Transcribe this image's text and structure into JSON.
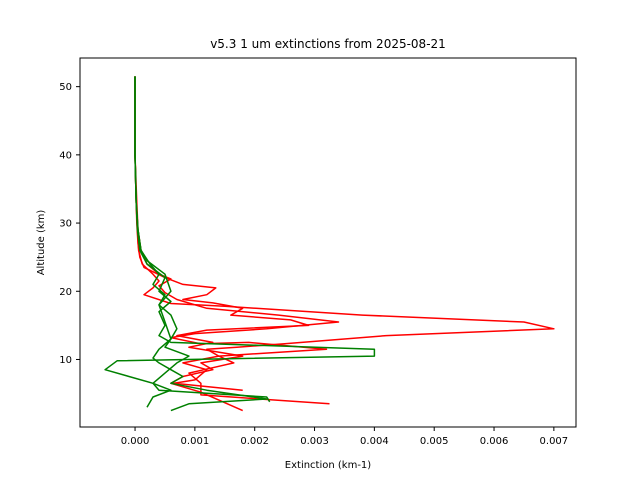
{
  "chart_data": {
    "type": "line",
    "title": "v5.3 1 um extinctions from 2025-08-21",
    "xlabel": "Extinction (km-1)",
    "ylabel": "Altitude (km)",
    "xlim": [
      -0.00092,
      0.00737
    ],
    "ylim": [
      0.1,
      54.2
    ],
    "xticks": [
      {
        "value": 0.0,
        "label": "0.000"
      },
      {
        "value": 0.001,
        "label": "0.001"
      },
      {
        "value": 0.002,
        "label": "0.002"
      },
      {
        "value": 0.003,
        "label": "0.003"
      },
      {
        "value": 0.004,
        "label": "0.004"
      },
      {
        "value": 0.005,
        "label": "0.005"
      },
      {
        "value": 0.006,
        "label": "0.006"
      },
      {
        "value": 0.007,
        "label": "0.007"
      }
    ],
    "yticks": [
      {
        "value": 10,
        "label": "10"
      },
      {
        "value": 20,
        "label": "20"
      },
      {
        "value": 30,
        "label": "30"
      },
      {
        "value": 40,
        "label": "40"
      },
      {
        "value": 50,
        "label": "50"
      }
    ],
    "grid": false,
    "legend": null,
    "series": [
      {
        "color": "#ff0000",
        "points": [
          [
            0.0,
            51.5
          ],
          [
            0.0,
            40
          ],
          [
            2e-05,
            33
          ],
          [
            3e-05,
            30
          ],
          [
            5e-05,
            27
          ],
          [
            8e-05,
            25
          ],
          [
            0.00015,
            23.5
          ],
          [
            0.0005,
            22
          ],
          [
            0.0008,
            21
          ],
          [
            0.00135,
            20.5
          ],
          [
            0.0012,
            19.5
          ],
          [
            0.0008,
            18.8
          ],
          [
            0.0013,
            18.3
          ],
          [
            0.0018,
            17.5
          ],
          [
            0.0016,
            16.5
          ],
          [
            0.0026,
            15.8
          ],
          [
            0.0029,
            15
          ],
          [
            0.0012,
            14.3
          ],
          [
            0.0007,
            13.5
          ],
          [
            0.0013,
            12.5
          ],
          [
            0.0009,
            11.8
          ],
          [
            0.0018,
            10.5
          ],
          [
            0.0011,
            9.5
          ],
          [
            0.0013,
            8.5
          ],
          [
            0.0008,
            7.5
          ],
          [
            0.0006,
            6.5
          ],
          [
            0.0011,
            5.2
          ],
          [
            0.0018,
            2.5
          ]
        ]
      },
      {
        "color": "#ff0000",
        "points": [
          [
            0.0,
            51.5
          ],
          [
            0.0,
            40
          ],
          [
            2e-05,
            33
          ],
          [
            4e-05,
            29
          ],
          [
            6e-05,
            26
          ],
          [
            0.00012,
            24
          ],
          [
            0.0003,
            22.5
          ],
          [
            0.0004,
            21.5
          ],
          [
            0.0003,
            20.5
          ],
          [
            0.00015,
            19.5
          ],
          [
            0.0006,
            18.2
          ],
          [
            0.0015,
            17.8
          ],
          [
            0.0038,
            16.5
          ],
          [
            0.0065,
            15.5
          ],
          [
            0.007,
            14.5
          ],
          [
            0.0042,
            13.5
          ],
          [
            0.0025,
            12.3
          ],
          [
            0.0017,
            11.8
          ],
          [
            0.0012,
            11.5
          ],
          [
            0.0014,
            10.5
          ],
          [
            0.00165,
            9.5
          ],
          [
            0.0013,
            8.8
          ],
          [
            0.0009,
            8
          ],
          [
            0.0011,
            6.5
          ],
          [
            0.0011,
            4.8
          ],
          [
            0.00325,
            3.5
          ]
        ]
      },
      {
        "color": "#ff0000",
        "points": [
          [
            0.0,
            51.5
          ],
          [
            0.0,
            40
          ],
          [
            3e-05,
            33
          ],
          [
            5e-05,
            29
          ],
          [
            0.0001,
            26
          ],
          [
            0.0002,
            24
          ],
          [
            0.0004,
            22.5
          ],
          [
            0.0006,
            21.8
          ],
          [
            0.0004,
            20.8
          ],
          [
            0.0005,
            19.8
          ],
          [
            0.0007,
            18.8
          ],
          [
            0.0012,
            17.5
          ],
          [
            0.0024,
            16.5
          ],
          [
            0.0034,
            15.5
          ],
          [
            0.0022,
            14.5
          ],
          [
            0.001,
            13.8
          ],
          [
            0.0006,
            13.2
          ],
          [
            0.0011,
            12.3
          ],
          [
            0.0019,
            12.5
          ],
          [
            0.0032,
            11.5
          ],
          [
            0.0014,
            10.5
          ],
          [
            0.0008,
            9.5
          ],
          [
            0.0012,
            8.5
          ],
          [
            0.001,
            7
          ],
          [
            0.00065,
            6.5
          ],
          [
            0.0018,
            5.5
          ]
        ]
      },
      {
        "color": "#008000",
        "points": [
          [
            0.0,
            51.5
          ],
          [
            0.0,
            40
          ],
          [
            2e-05,
            33
          ],
          [
            5e-05,
            29
          ],
          [
            0.0001,
            26
          ],
          [
            0.0002,
            24.5
          ],
          [
            0.0005,
            22.5
          ],
          [
            0.0006,
            20
          ],
          [
            0.0004,
            18
          ],
          [
            0.0005,
            15.5
          ],
          [
            0.0006,
            13
          ],
          [
            0.0004,
            11.5
          ],
          [
            0.0003,
            10.2
          ],
          [
            0.0004,
            9.5
          ],
          [
            0.0006,
            8.5
          ],
          [
            0.0008,
            7.5
          ],
          [
            0.0006,
            6.5
          ],
          [
            0.0012,
            5.5
          ],
          [
            0.0022,
            4.2
          ],
          [
            0.0009,
            3.5
          ],
          [
            0.0006,
            2.5
          ]
        ]
      },
      {
        "color": "#008000",
        "points": [
          [
            0.0,
            51.5
          ],
          [
            0.0,
            40
          ],
          [
            2e-05,
            33
          ],
          [
            4e-05,
            29
          ],
          [
            8e-05,
            26
          ],
          [
            0.0002,
            24
          ],
          [
            0.0005,
            22
          ],
          [
            0.0004,
            20
          ],
          [
            0.0006,
            18.5
          ],
          [
            0.0004,
            17
          ],
          [
            0.0005,
            15
          ],
          [
            0.0004,
            13.5
          ],
          [
            0.0006,
            12.5
          ],
          [
            0.004,
            11.5
          ],
          [
            0.004,
            10.5
          ],
          [
            -0.0003,
            9.8
          ],
          [
            -0.0005,
            8.5
          ],
          [
            0.0003,
            6.5
          ],
          [
            0.0004,
            5.5
          ],
          [
            0.0022,
            4.5
          ],
          [
            0.00225,
            3.8
          ]
        ]
      },
      {
        "color": "#008000",
        "points": [
          [
            0.0,
            51.5
          ],
          [
            0.0,
            40
          ],
          [
            2e-05,
            33
          ],
          [
            5e-05,
            29
          ],
          [
            0.0001,
            26
          ],
          [
            0.00025,
            24
          ],
          [
            0.0004,
            22.5
          ],
          [
            0.0003,
            21
          ],
          [
            0.0005,
            19.5
          ],
          [
            0.0004,
            18
          ],
          [
            0.0006,
            16.5
          ],
          [
            0.0007,
            14.5
          ],
          [
            0.0006,
            13
          ],
          [
            0.0005,
            11.8
          ],
          [
            0.0009,
            10.5
          ],
          [
            0.0007,
            9.5
          ],
          [
            0.0005,
            8
          ],
          [
            0.0003,
            6.5
          ],
          [
            0.0006,
            5.5
          ],
          [
            0.0003,
            4.5
          ],
          [
            0.0002,
            3
          ]
        ]
      }
    ]
  }
}
